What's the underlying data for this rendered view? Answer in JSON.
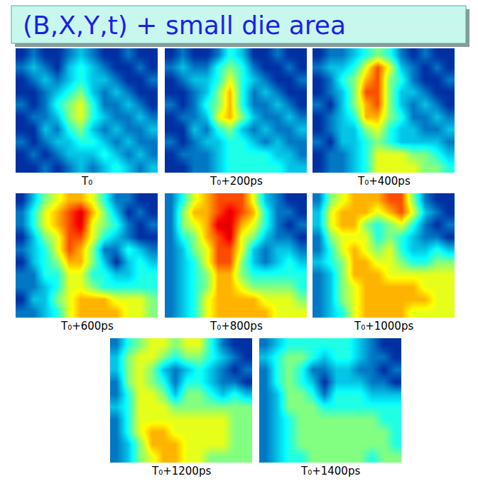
{
  "title": "(B,X,Y,t) + small die area",
  "chart_data": [
    {
      "type": "heatmap",
      "label": "T₀",
      "zlim": [
        0,
        1
      ],
      "tick_labels": false,
      "z": [
        [
          0.1,
          0.2,
          0.1,
          0.1,
          0.2,
          0.3,
          0.2,
          0.1,
          0.1,
          0.2,
          0.1,
          0.1
        ],
        [
          0.2,
          0.3,
          0.2,
          0.1,
          0.3,
          0.4,
          0.3,
          0.2,
          0.1,
          0.1,
          0.2,
          0.1
        ],
        [
          0.1,
          0.2,
          0.3,
          0.2,
          0.3,
          0.4,
          0.3,
          0.3,
          0.2,
          0.1,
          0.1,
          0.2
        ],
        [
          0.1,
          0.1,
          0.2,
          0.3,
          0.4,
          0.5,
          0.3,
          0.2,
          0.3,
          0.2,
          0.1,
          0.1
        ],
        [
          0.2,
          0.1,
          0.2,
          0.4,
          0.5,
          0.6,
          0.4,
          0.2,
          0.2,
          0.3,
          0.2,
          0.1
        ],
        [
          0.1,
          0.2,
          0.2,
          0.3,
          0.5,
          0.6,
          0.4,
          0.3,
          0.2,
          0.2,
          0.3,
          0.2
        ],
        [
          0.1,
          0.1,
          0.3,
          0.2,
          0.4,
          0.5,
          0.3,
          0.2,
          0.3,
          0.2,
          0.2,
          0.3
        ],
        [
          0.2,
          0.1,
          0.2,
          0.3,
          0.3,
          0.4,
          0.4,
          0.3,
          0.2,
          0.3,
          0.2,
          0.2
        ],
        [
          0.1,
          0.2,
          0.1,
          0.2,
          0.3,
          0.3,
          0.3,
          0.4,
          0.3,
          0.2,
          0.3,
          0.2
        ],
        [
          0.1,
          0.1,
          0.2,
          0.1,
          0.2,
          0.3,
          0.2,
          0.3,
          0.4,
          0.3,
          0.2,
          0.3
        ]
      ]
    },
    {
      "type": "heatmap",
      "label": "T₀+200ps",
      "zlim": [
        0,
        1
      ],
      "tick_labels": false,
      "z": [
        [
          0.1,
          0.2,
          0.1,
          0.1,
          0.2,
          0.4,
          0.3,
          0.1,
          0.1,
          0.2,
          0.1,
          0.1
        ],
        [
          0.2,
          0.3,
          0.2,
          0.2,
          0.4,
          0.5,
          0.4,
          0.2,
          0.1,
          0.1,
          0.2,
          0.1
        ],
        [
          0.1,
          0.2,
          0.3,
          0.3,
          0.4,
          0.6,
          0.4,
          0.3,
          0.2,
          0.1,
          0.1,
          0.2
        ],
        [
          0.1,
          0.1,
          0.2,
          0.3,
          0.5,
          0.7,
          0.4,
          0.2,
          0.3,
          0.2,
          0.1,
          0.1
        ],
        [
          0.2,
          0.1,
          0.2,
          0.4,
          0.5,
          0.7,
          0.4,
          0.2,
          0.2,
          0.3,
          0.2,
          0.1
        ],
        [
          0.1,
          0.2,
          0.2,
          0.3,
          0.6,
          0.7,
          0.5,
          0.3,
          0.2,
          0.2,
          0.3,
          0.2
        ],
        [
          0.1,
          0.1,
          0.3,
          0.2,
          0.4,
          0.5,
          0.3,
          0.2,
          0.3,
          0.2,
          0.2,
          0.3
        ],
        [
          0.2,
          0.1,
          0.2,
          0.3,
          0.3,
          0.4,
          0.4,
          0.3,
          0.2,
          0.3,
          0.2,
          0.2
        ],
        [
          0.1,
          0.2,
          0.2,
          0.2,
          0.3,
          0.4,
          0.4,
          0.4,
          0.4,
          0.3,
          0.3,
          0.2
        ],
        [
          0.1,
          0.1,
          0.2,
          0.2,
          0.3,
          0.4,
          0.4,
          0.4,
          0.4,
          0.4,
          0.3,
          0.3
        ]
      ]
    },
    {
      "type": "heatmap",
      "label": "T₀+400ps",
      "zlim": [
        0,
        1
      ],
      "tick_labels": false,
      "z": [
        [
          0.1,
          0.2,
          0.2,
          0.3,
          0.4,
          0.5,
          0.4,
          0.2,
          0.1,
          0.2,
          0.1,
          0.1
        ],
        [
          0.2,
          0.3,
          0.3,
          0.4,
          0.6,
          0.8,
          0.6,
          0.3,
          0.2,
          0.1,
          0.2,
          0.1
        ],
        [
          0.1,
          0.2,
          0.4,
          0.5,
          0.7,
          0.8,
          0.5,
          0.4,
          0.2,
          0.1,
          0.1,
          0.2
        ],
        [
          0.1,
          0.2,
          0.3,
          0.5,
          0.8,
          0.8,
          0.5,
          0.3,
          0.3,
          0.2,
          0.1,
          0.1
        ],
        [
          0.2,
          0.1,
          0.3,
          0.5,
          0.7,
          0.8,
          0.5,
          0.3,
          0.2,
          0.3,
          0.2,
          0.1
        ],
        [
          0.1,
          0.2,
          0.3,
          0.4,
          0.7,
          0.7,
          0.5,
          0.4,
          0.2,
          0.2,
          0.3,
          0.2
        ],
        [
          0.1,
          0.2,
          0.3,
          0.3,
          0.5,
          0.6,
          0.4,
          0.3,
          0.3,
          0.2,
          0.2,
          0.3
        ],
        [
          0.2,
          0.1,
          0.3,
          0.3,
          0.4,
          0.5,
          0.4,
          0.3,
          0.3,
          0.3,
          0.3,
          0.2
        ],
        [
          0.1,
          0.2,
          0.2,
          0.3,
          0.4,
          0.6,
          0.6,
          0.6,
          0.5,
          0.5,
          0.4,
          0.3
        ],
        [
          0.1,
          0.2,
          0.2,
          0.3,
          0.4,
          0.6,
          0.6,
          0.6,
          0.6,
          0.5,
          0.5,
          0.4
        ]
      ]
    },
    {
      "type": "heatmap",
      "label": "T₀+600ps",
      "zlim": [
        0,
        1
      ],
      "tick_labels": false,
      "z": [
        [
          0.1,
          0.3,
          0.5,
          0.6,
          0.7,
          0.7,
          0.6,
          0.4,
          0.2,
          0.2,
          0.1,
          0.1
        ],
        [
          0.2,
          0.4,
          0.6,
          0.7,
          0.8,
          0.9,
          0.7,
          0.5,
          0.3,
          0.1,
          0.2,
          0.1
        ],
        [
          0.2,
          0.4,
          0.6,
          0.7,
          0.8,
          0.9,
          0.6,
          0.5,
          0.4,
          0.2,
          0.1,
          0.2
        ],
        [
          0.1,
          0.3,
          0.5,
          0.6,
          0.8,
          0.8,
          0.6,
          0.4,
          0.3,
          0.2,
          0.1,
          0.1
        ],
        [
          0.2,
          0.3,
          0.4,
          0.6,
          0.8,
          0.7,
          0.5,
          0.2,
          0.2,
          0.4,
          0.3,
          0.2
        ],
        [
          0.1,
          0.3,
          0.4,
          0.5,
          0.7,
          0.7,
          0.5,
          0.3,
          0.1,
          0.3,
          0.4,
          0.3
        ],
        [
          0.2,
          0.2,
          0.4,
          0.4,
          0.6,
          0.6,
          0.4,
          0.4,
          0.3,
          0.3,
          0.4,
          0.4
        ],
        [
          0.2,
          0.2,
          0.3,
          0.4,
          0.6,
          0.6,
          0.5,
          0.4,
          0.4,
          0.4,
          0.4,
          0.4
        ],
        [
          0.1,
          0.3,
          0.3,
          0.5,
          0.6,
          0.7,
          0.7,
          0.7,
          0.6,
          0.6,
          0.6,
          0.5
        ],
        [
          0.2,
          0.2,
          0.3,
          0.4,
          0.6,
          0.7,
          0.7,
          0.7,
          0.7,
          0.6,
          0.6,
          0.5
        ]
      ]
    },
    {
      "type": "heatmap",
      "label": "T₀+800ps",
      "zlim": [
        0,
        1
      ],
      "tick_labels": false,
      "z": [
        [
          0.2,
          0.4,
          0.6,
          0.7,
          0.8,
          0.8,
          0.8,
          0.6,
          0.3,
          0.2,
          0.1,
          0.1
        ],
        [
          0.2,
          0.5,
          0.7,
          0.7,
          0.8,
          0.9,
          0.8,
          0.7,
          0.4,
          0.2,
          0.2,
          0.1
        ],
        [
          0.2,
          0.5,
          0.6,
          0.7,
          0.9,
          0.9,
          0.7,
          0.6,
          0.4,
          0.2,
          0.1,
          0.2
        ],
        [
          0.2,
          0.4,
          0.5,
          0.7,
          0.8,
          0.9,
          0.6,
          0.5,
          0.3,
          0.2,
          0.2,
          0.1
        ],
        [
          0.2,
          0.3,
          0.5,
          0.6,
          0.8,
          0.8,
          0.6,
          0.3,
          0.2,
          0.3,
          0.3,
          0.2
        ],
        [
          0.2,
          0.3,
          0.4,
          0.6,
          0.8,
          0.8,
          0.5,
          0.3,
          0.2,
          0.3,
          0.4,
          0.3
        ],
        [
          0.2,
          0.3,
          0.4,
          0.5,
          0.7,
          0.7,
          0.5,
          0.4,
          0.4,
          0.4,
          0.4,
          0.4
        ],
        [
          0.2,
          0.3,
          0.4,
          0.5,
          0.7,
          0.7,
          0.6,
          0.5,
          0.5,
          0.5,
          0.5,
          0.4
        ],
        [
          0.2,
          0.3,
          0.4,
          0.6,
          0.7,
          0.7,
          0.7,
          0.7,
          0.6,
          0.6,
          0.6,
          0.5
        ],
        [
          0.2,
          0.3,
          0.4,
          0.6,
          0.7,
          0.7,
          0.7,
          0.7,
          0.7,
          0.6,
          0.6,
          0.6
        ]
      ]
    },
    {
      "type": "heatmap",
      "label": "T₀+1000ps",
      "zlim": [
        0,
        1
      ],
      "tick_labels": false,
      "z": [
        [
          0.2,
          0.5,
          0.6,
          0.7,
          0.7,
          0.7,
          0.8,
          0.8,
          0.5,
          0.2,
          0.1,
          0.1
        ],
        [
          0.3,
          0.6,
          0.7,
          0.7,
          0.7,
          0.6,
          0.7,
          0.8,
          0.6,
          0.3,
          0.2,
          0.1
        ],
        [
          0.3,
          0.6,
          0.7,
          0.7,
          0.5,
          0.4,
          0.5,
          0.6,
          0.4,
          0.2,
          0.1,
          0.2
        ],
        [
          0.2,
          0.5,
          0.6,
          0.6,
          0.6,
          0.4,
          0.5,
          0.4,
          0.3,
          0.2,
          0.2,
          0.1
        ],
        [
          0.2,
          0.4,
          0.6,
          0.7,
          0.6,
          0.5,
          0.6,
          0.4,
          0.3,
          0.3,
          0.4,
          0.3
        ],
        [
          0.3,
          0.4,
          0.5,
          0.7,
          0.7,
          0.6,
          0.6,
          0.5,
          0.4,
          0.4,
          0.5,
          0.5
        ],
        [
          0.2,
          0.3,
          0.5,
          0.7,
          0.7,
          0.7,
          0.6,
          0.6,
          0.6,
          0.6,
          0.6,
          0.6
        ],
        [
          0.2,
          0.3,
          0.5,
          0.6,
          0.7,
          0.7,
          0.7,
          0.7,
          0.7,
          0.6,
          0.6,
          0.6
        ],
        [
          0.2,
          0.3,
          0.5,
          0.6,
          0.7,
          0.7,
          0.7,
          0.7,
          0.7,
          0.7,
          0.6,
          0.6
        ],
        [
          0.2,
          0.3,
          0.4,
          0.6,
          0.7,
          0.7,
          0.7,
          0.7,
          0.6,
          0.6,
          0.6,
          0.6
        ]
      ]
    },
    {
      "type": "heatmap",
      "label": "T₀+1200ps",
      "zlim": [
        0,
        1
      ],
      "tick_labels": false,
      "z": [
        [
          0.2,
          0.4,
          0.5,
          0.6,
          0.6,
          0.5,
          0.6,
          0.6,
          0.4,
          0.2,
          0.1,
          0.1
        ],
        [
          0.3,
          0.5,
          0.6,
          0.6,
          0.5,
          0.4,
          0.5,
          0.5,
          0.4,
          0.3,
          0.2,
          0.1
        ],
        [
          0.3,
          0.5,
          0.6,
          0.5,
          0.3,
          0.2,
          0.3,
          0.4,
          0.3,
          0.2,
          0.1,
          0.2
        ],
        [
          0.2,
          0.5,
          0.6,
          0.5,
          0.4,
          0.2,
          0.4,
          0.4,
          0.3,
          0.2,
          0.2,
          0.1
        ],
        [
          0.2,
          0.4,
          0.6,
          0.6,
          0.5,
          0.3,
          0.5,
          0.5,
          0.4,
          0.3,
          0.4,
          0.3
        ],
        [
          0.3,
          0.4,
          0.6,
          0.6,
          0.6,
          0.5,
          0.5,
          0.5,
          0.5,
          0.5,
          0.5,
          0.5
        ],
        [
          0.2,
          0.4,
          0.6,
          0.6,
          0.6,
          0.6,
          0.6,
          0.6,
          0.6,
          0.6,
          0.5,
          0.5
        ],
        [
          0.2,
          0.4,
          0.6,
          0.7,
          0.7,
          0.6,
          0.6,
          0.6,
          0.6,
          0.6,
          0.5,
          0.5
        ],
        [
          0.2,
          0.3,
          0.5,
          0.7,
          0.7,
          0.7,
          0.6,
          0.6,
          0.6,
          0.6,
          0.5,
          0.5
        ],
        [
          0.2,
          0.3,
          0.5,
          0.6,
          0.7,
          0.7,
          0.6,
          0.6,
          0.5,
          0.5,
          0.5,
          0.5
        ]
      ]
    },
    {
      "type": "heatmap",
      "label": "T₀+1400ps",
      "zlim": [
        0,
        1
      ],
      "tick_labels": false,
      "z": [
        [
          0.2,
          0.3,
          0.4,
          0.4,
          0.4,
          0.4,
          0.4,
          0.4,
          0.3,
          0.2,
          0.1,
          0.1
        ],
        [
          0.3,
          0.4,
          0.5,
          0.5,
          0.4,
          0.3,
          0.4,
          0.4,
          0.3,
          0.2,
          0.2,
          0.1
        ],
        [
          0.2,
          0.4,
          0.5,
          0.4,
          0.2,
          0.2,
          0.3,
          0.3,
          0.2,
          0.2,
          0.1,
          0.2
        ],
        [
          0.2,
          0.4,
          0.5,
          0.4,
          0.3,
          0.1,
          0.3,
          0.3,
          0.3,
          0.2,
          0.2,
          0.1
        ],
        [
          0.2,
          0.3,
          0.5,
          0.5,
          0.4,
          0.2,
          0.4,
          0.4,
          0.4,
          0.3,
          0.3,
          0.3
        ],
        [
          0.2,
          0.3,
          0.5,
          0.5,
          0.5,
          0.4,
          0.4,
          0.4,
          0.4,
          0.4,
          0.4,
          0.4
        ],
        [
          0.2,
          0.3,
          0.4,
          0.5,
          0.5,
          0.5,
          0.5,
          0.5,
          0.5,
          0.5,
          0.4,
          0.4
        ],
        [
          0.2,
          0.3,
          0.4,
          0.5,
          0.5,
          0.5,
          0.5,
          0.5,
          0.5,
          0.5,
          0.5,
          0.4
        ],
        [
          0.2,
          0.3,
          0.4,
          0.5,
          0.5,
          0.5,
          0.5,
          0.5,
          0.5,
          0.5,
          0.5,
          0.4
        ],
        [
          0.2,
          0.3,
          0.4,
          0.4,
          0.5,
          0.5,
          0.5,
          0.5,
          0.5,
          0.4,
          0.5,
          0.5
        ]
      ]
    }
  ]
}
